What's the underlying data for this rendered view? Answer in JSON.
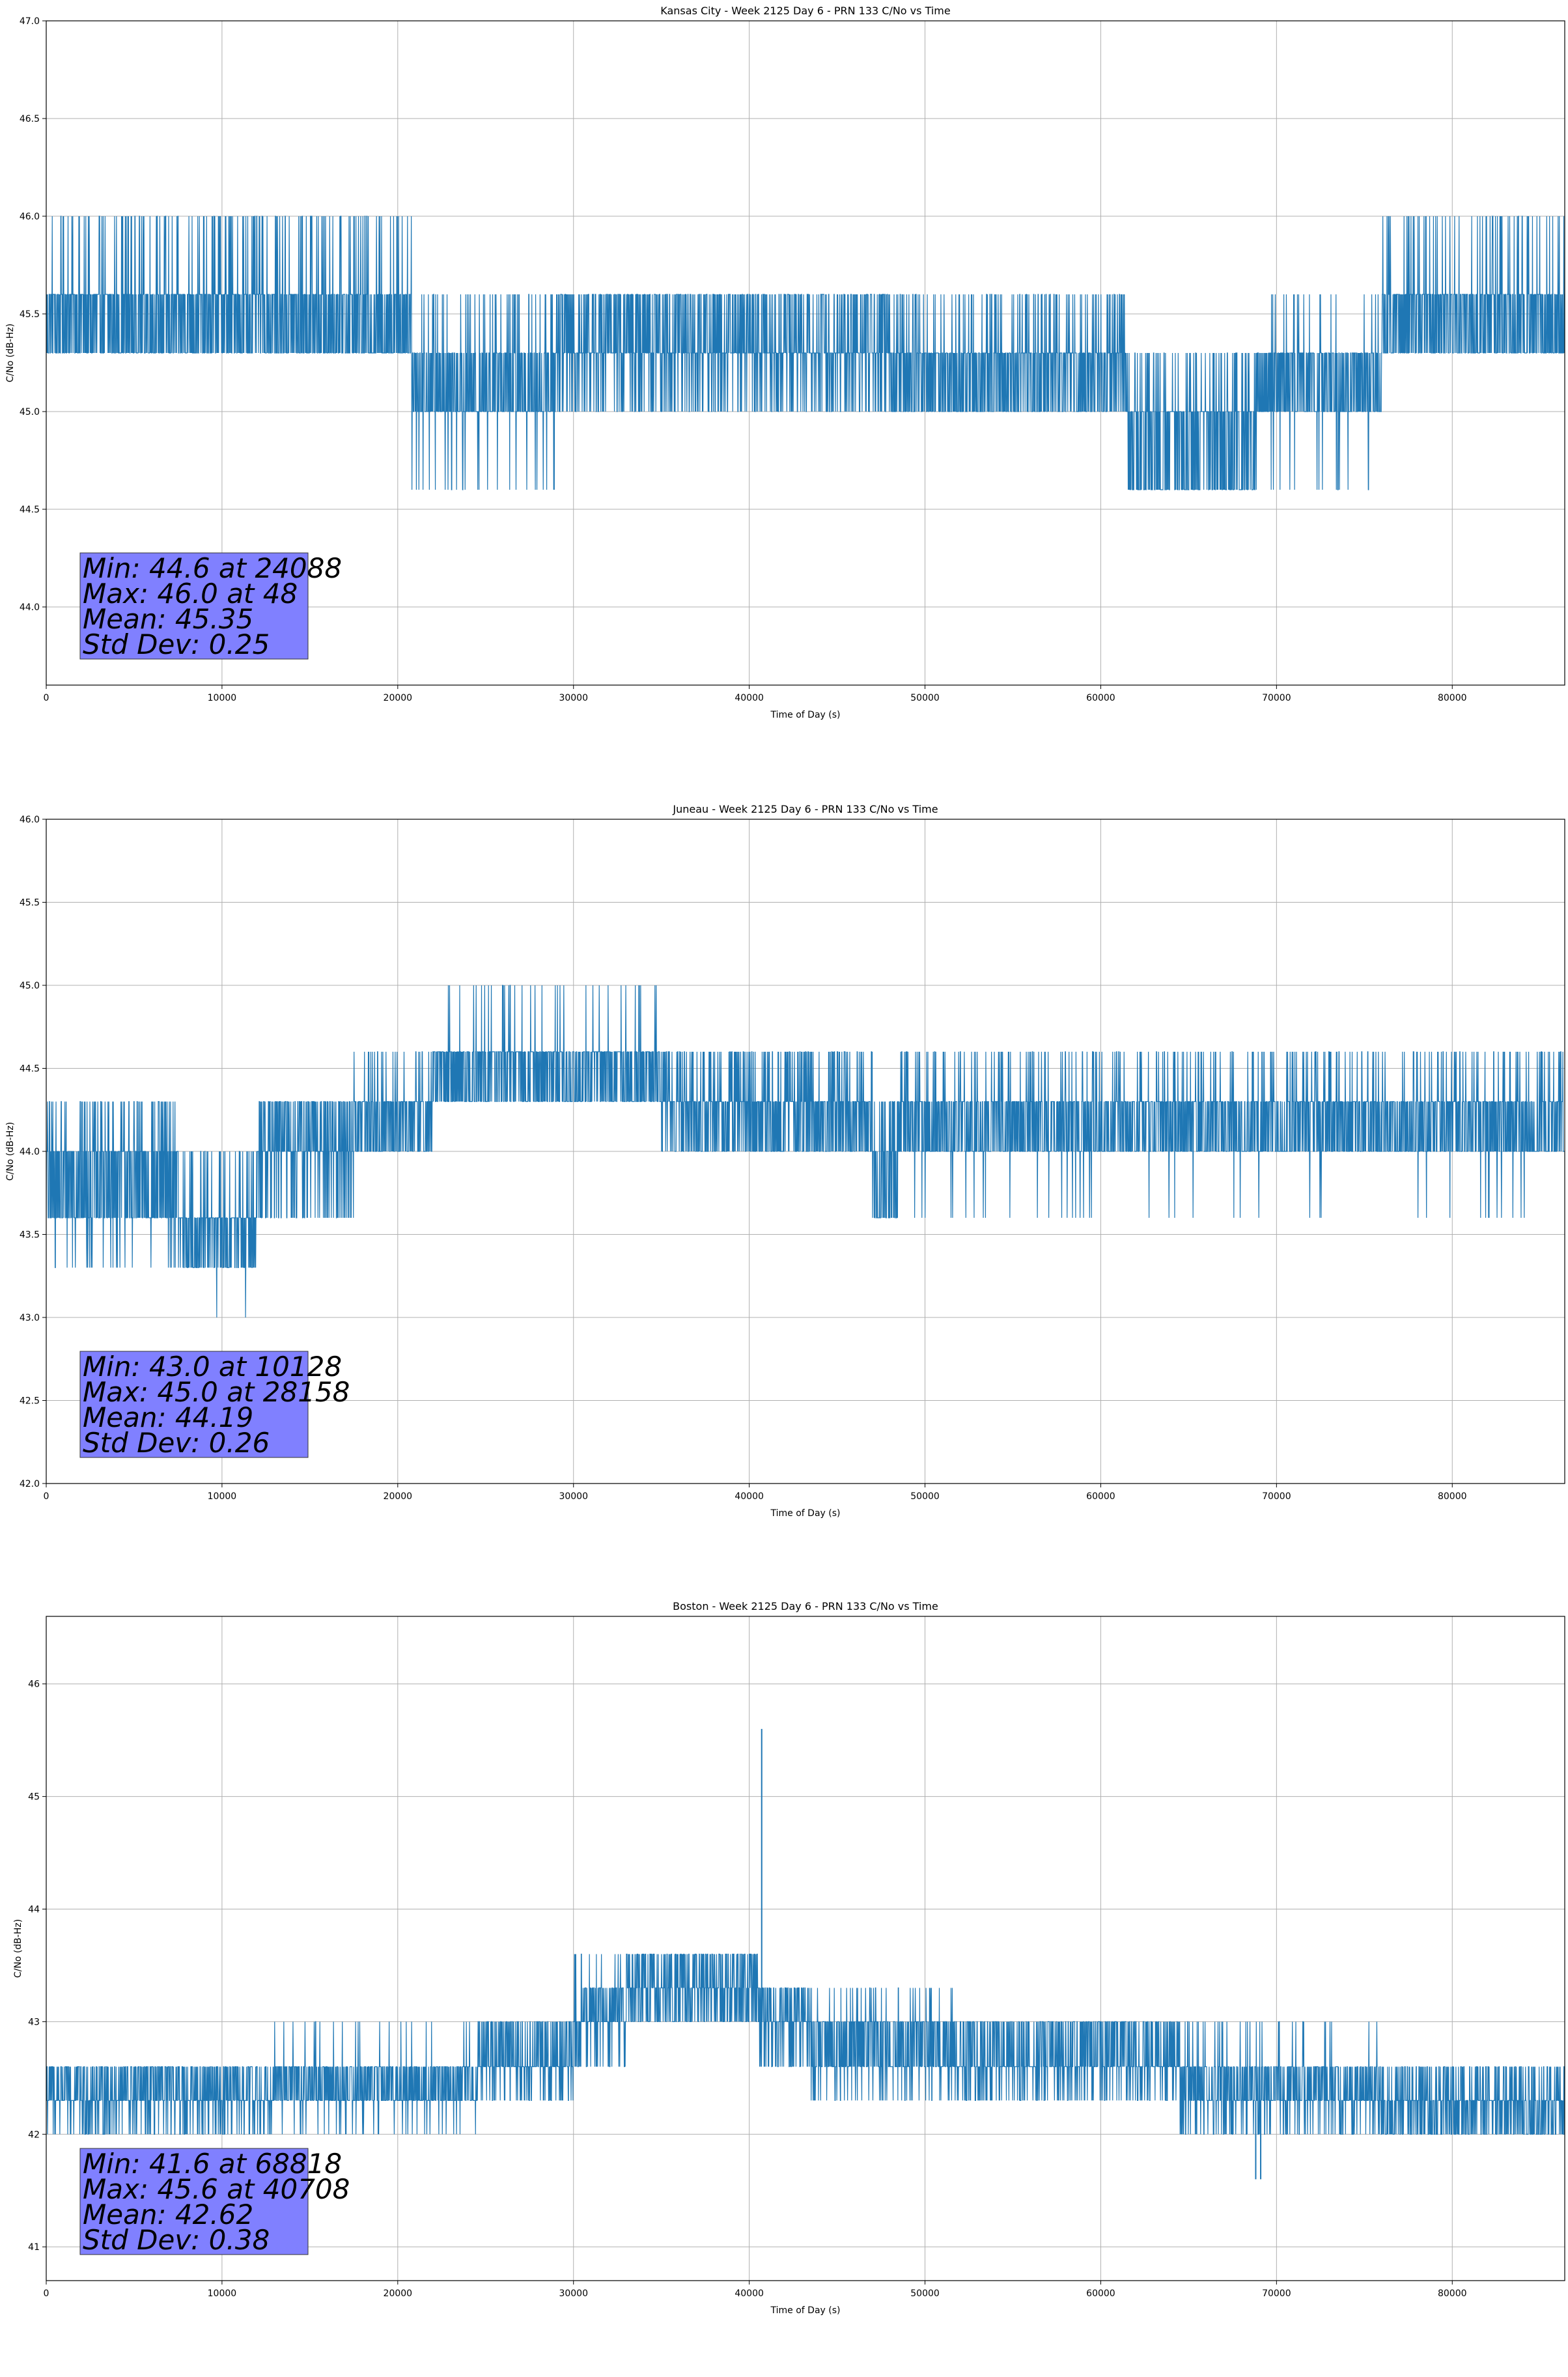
{
  "chart_data": [
    {
      "type": "line",
      "title": "Kansas City - Week 2125 Day 6 - PRN 133 C/No vs Time",
      "xlabel": "Time of Day (s)",
      "ylabel": "C/No (dB-Hz)",
      "xlim": [
        0,
        86400
      ],
      "ylim": [
        43.6,
        47.0
      ],
      "xticks": [
        0,
        10000,
        20000,
        30000,
        40000,
        50000,
        60000,
        70000,
        80000
      ],
      "xtick_labels": [
        "0",
        "10000",
        "20000",
        "30000",
        "40000",
        "50000",
        "60000",
        "70000",
        "80000"
      ],
      "yticks": [
        44.0,
        44.5,
        45.0,
        45.5,
        46.0,
        46.5,
        47.0
      ],
      "ytick_labels": [
        "44.0",
        "44.5",
        "45.0",
        "45.5",
        "46.0",
        "46.5",
        "47.0"
      ],
      "grid": true,
      "line_color": "#1f77b4",
      "stats_box_color": "#8080ff",
      "stats": [
        "Min: 44.6 at 24088",
        "Max: 46.0 at 48",
        "Mean: 45.35",
        "Std Dev: 0.25"
      ],
      "series": [
        {
          "name": "C/No",
          "segments": [
            {
              "x": [
                0,
                9500
              ],
              "levels": [
                45.3,
                45.6,
                46.0
              ],
              "weights": [
                0.45,
                0.45,
                0.1
              ]
            },
            {
              "x": [
                9500,
                20800
              ],
              "levels": [
                45.3,
                45.6,
                46.0
              ],
              "weights": [
                0.45,
                0.4,
                0.15
              ]
            },
            {
              "x": [
                20800,
                29000
              ],
              "levels": [
                44.6,
                45.0,
                45.3,
                45.6
              ],
              "weights": [
                0.04,
                0.55,
                0.3,
                0.11
              ]
            },
            {
              "x": [
                29000,
                48000
              ],
              "levels": [
                45.0,
                45.3,
                45.6
              ],
              "weights": [
                0.2,
                0.45,
                0.35
              ]
            },
            {
              "x": [
                48000,
                61500
              ],
              "levels": [
                45.0,
                45.3,
                45.6
              ],
              "weights": [
                0.4,
                0.45,
                0.15
              ]
            },
            {
              "x": [
                61500,
                68800
              ],
              "levels": [
                44.6,
                45.0,
                45.3
              ],
              "weights": [
                0.45,
                0.4,
                0.15
              ]
            },
            {
              "x": [
                68800,
                76000
              ],
              "levels": [
                44.6,
                45.0,
                45.3,
                45.6
              ],
              "weights": [
                0.03,
                0.45,
                0.45,
                0.07
              ]
            },
            {
              "x": [
                76000,
                86400
              ],
              "levels": [
                45.3,
                45.6,
                46.0
              ],
              "weights": [
                0.45,
                0.45,
                0.1
              ]
            }
          ]
        }
      ]
    },
    {
      "type": "line",
      "title": "Juneau - Week 2125 Day 6 - PRN 133 C/No vs Time",
      "xlabel": "Time of Day (s)",
      "ylabel": "C/No (dB-Hz)",
      "xlim": [
        0,
        86400
      ],
      "ylim": [
        42.0,
        46.0
      ],
      "xticks": [
        0,
        10000,
        20000,
        30000,
        40000,
        50000,
        60000,
        70000,
        80000
      ],
      "xtick_labels": [
        "0",
        "10000",
        "20000",
        "30000",
        "40000",
        "50000",
        "60000",
        "70000",
        "80000"
      ],
      "yticks": [
        42.0,
        42.5,
        43.0,
        43.5,
        44.0,
        44.5,
        45.0,
        45.5,
        46.0
      ],
      "ytick_labels": [
        "42.0",
        "42.5",
        "43.0",
        "43.5",
        "44.0",
        "44.5",
        "45.0",
        "45.5",
        "46.0"
      ],
      "grid": true,
      "line_color": "#1f77b4",
      "stats_box_color": "#8080ff",
      "stats": [
        "Min: 43.0 at 10128",
        "Max: 45.0 at 28158",
        "Mean: 44.19",
        "Std Dev: 0.26"
      ],
      "series": [
        {
          "name": "C/No",
          "segments": [
            {
              "x": [
                0,
                7500
              ],
              "levels": [
                43.3,
                43.6,
                44.0,
                44.3
              ],
              "weights": [
                0.05,
                0.45,
                0.35,
                0.15
              ]
            },
            {
              "x": [
                7500,
                12000
              ],
              "levels": [
                43.0,
                43.3,
                43.6,
                44.0
              ],
              "weights": [
                0.02,
                0.35,
                0.5,
                0.13
              ]
            },
            {
              "x": [
                12000,
                17500
              ],
              "levels": [
                43.6,
                44.0,
                44.3
              ],
              "weights": [
                0.2,
                0.45,
                0.35
              ]
            },
            {
              "x": [
                17500,
                22000
              ],
              "levels": [
                44.0,
                44.3,
                44.6
              ],
              "weights": [
                0.4,
                0.5,
                0.1
              ]
            },
            {
              "x": [
                22000,
                35000
              ],
              "levels": [
                44.3,
                44.6,
                45.0
              ],
              "weights": [
                0.45,
                0.5,
                0.05
              ]
            },
            {
              "x": [
                35000,
                47000
              ],
              "levels": [
                44.0,
                44.3,
                44.6
              ],
              "weights": [
                0.35,
                0.45,
                0.2
              ]
            },
            {
              "x": [
                47000,
                48500
              ],
              "levels": [
                43.6,
                44.0,
                44.3
              ],
              "weights": [
                0.5,
                0.3,
                0.2
              ]
            },
            {
              "x": [
                48500,
                86400
              ],
              "levels": [
                43.6,
                44.0,
                44.3,
                44.6
              ],
              "weights": [
                0.02,
                0.45,
                0.43,
                0.1
              ]
            }
          ]
        }
      ]
    },
    {
      "type": "line",
      "title": "Boston - Week 2125 Day 6 - PRN 133 C/No vs Time",
      "xlabel": "Time of Day (s)",
      "ylabel": "C/No (dB-Hz)",
      "xlim": [
        0,
        86400
      ],
      "ylim": [
        40.7,
        46.6
      ],
      "xticks": [
        0,
        10000,
        20000,
        30000,
        40000,
        50000,
        60000,
        70000,
        80000
      ],
      "xtick_labels": [
        "0",
        "10000",
        "20000",
        "30000",
        "40000",
        "50000",
        "60000",
        "70000",
        "80000"
      ],
      "yticks": [
        41,
        42,
        43,
        44,
        45,
        46
      ],
      "ytick_labels": [
        "41",
        "42",
        "43",
        "44",
        "45",
        "46"
      ],
      "grid": true,
      "line_color": "#1f77b4",
      "stats_box_color": "#8080ff",
      "stats": [
        "Min: 41.6 at 68818",
        "Max: 45.6 at 40708",
        "Mean: 42.62",
        "Std Dev: 0.38"
      ],
      "series": [
        {
          "name": "C/No",
          "segments": [
            {
              "x": [
                0,
                12500
              ],
              "levels": [
                42.0,
                42.3,
                42.6
              ],
              "weights": [
                0.2,
                0.45,
                0.35
              ]
            },
            {
              "x": [
                12500,
                24500
              ],
              "levels": [
                42.0,
                42.3,
                42.6,
                43.0
              ],
              "weights": [
                0.05,
                0.5,
                0.4,
                0.05
              ]
            },
            {
              "x": [
                24500,
                30000
              ],
              "levels": [
                42.3,
                42.6,
                43.0
              ],
              "weights": [
                0.15,
                0.5,
                0.35
              ]
            },
            {
              "x": [
                30000,
                33000
              ],
              "levels": [
                42.6,
                43.0,
                43.3,
                43.6
              ],
              "weights": [
                0.15,
                0.4,
                0.4,
                0.05
              ]
            },
            {
              "x": [
                33000,
                40500
              ],
              "levels": [
                43.0,
                43.3,
                43.6
              ],
              "weights": [
                0.3,
                0.4,
                0.3
              ]
            },
            {
              "x": [
                40500,
                43500
              ],
              "levels": [
                42.6,
                43.0,
                43.3
              ],
              "weights": [
                0.2,
                0.45,
                0.35
              ]
            },
            {
              "x": [
                43500,
                52000
              ],
              "levels": [
                42.3,
                42.6,
                43.0,
                43.3
              ],
              "weights": [
                0.1,
                0.4,
                0.4,
                0.1
              ]
            },
            {
              "x": [
                52000,
                64500
              ],
              "levels": [
                42.3,
                42.6,
                43.0
              ],
              "weights": [
                0.2,
                0.45,
                0.35
              ]
            },
            {
              "x": [
                64500,
                76000
              ],
              "levels": [
                42.0,
                42.3,
                42.6,
                43.0
              ],
              "weights": [
                0.15,
                0.45,
                0.35,
                0.05
              ]
            },
            {
              "x": [
                76000,
                86400
              ],
              "levels": [
                42.0,
                42.3,
                42.6
              ],
              "weights": [
                0.35,
                0.4,
                0.25
              ]
            }
          ],
          "spikes": [
            {
              "x": 40708,
              "low": 43.0,
              "high": 45.6
            },
            {
              "x": 68818,
              "low": 41.6,
              "high": 42.3
            },
            {
              "x": 69100,
              "low": 41.6,
              "high": 42.3
            }
          ]
        }
      ]
    }
  ]
}
